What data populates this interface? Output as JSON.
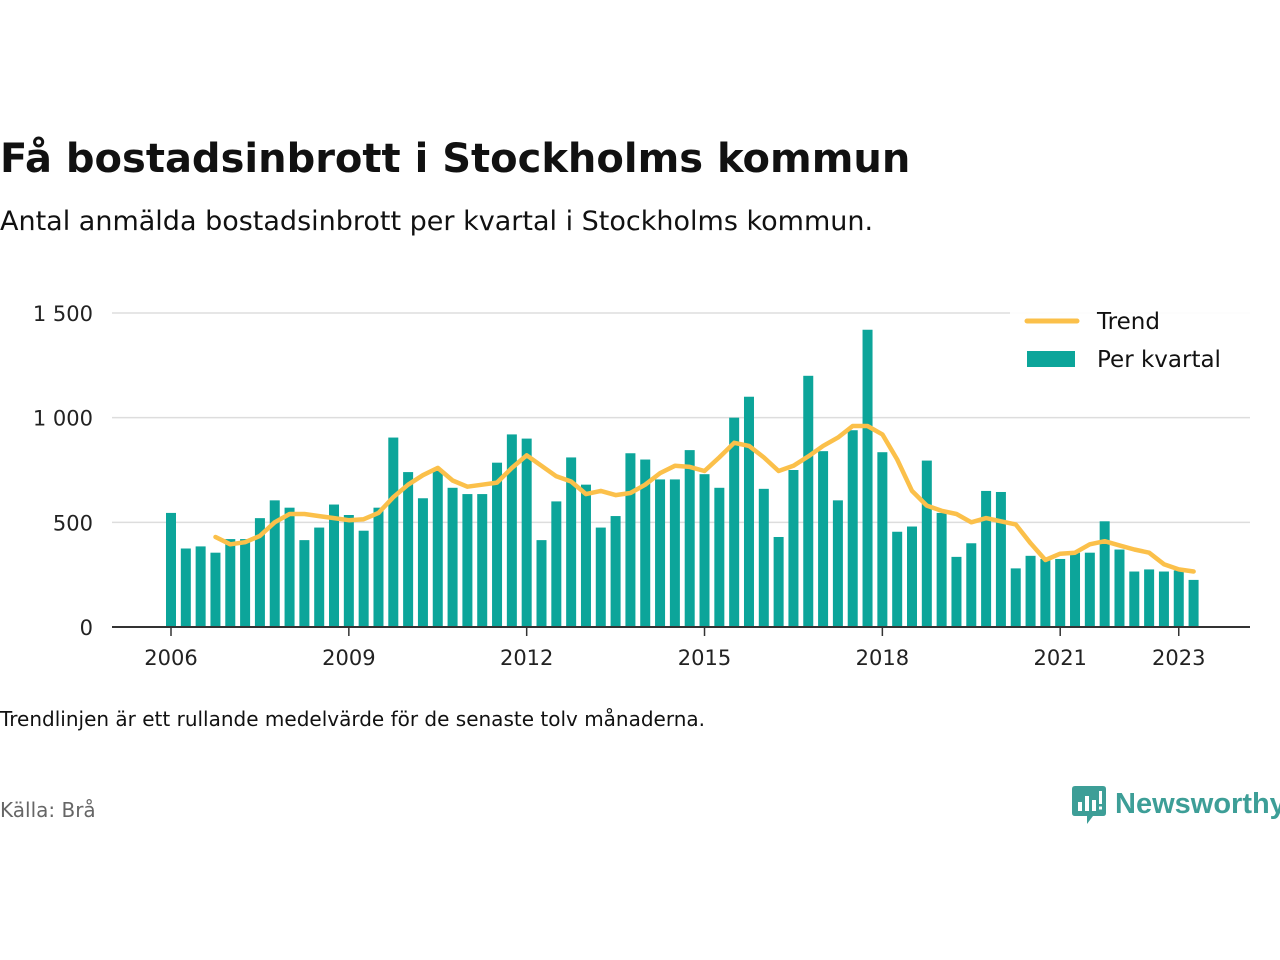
{
  "title": "Få bostadsinbrott i Stockholms kommun",
  "subtitle": "Antal anmälda bostadsinbrott per kvartal i Stockholms kommun.",
  "note": "Trendlinjen är ett rullande medelvärde för de senaste tolv månaderna.",
  "source": "Källa: Brå",
  "brand": {
    "name": "Newsworthy",
    "icon": "newsworthy-logo-icon"
  },
  "colors": {
    "bars": "#0ca59a",
    "trend": "#fbc04a",
    "grid": "#dddddd",
    "axis": "#333333",
    "brand": "#3d9e97"
  },
  "chart_data": {
    "type": "bar",
    "x_start": "2006 Q1",
    "xticks": [
      "2006",
      "2009",
      "2012",
      "2015",
      "2018",
      "2021",
      "2023"
    ],
    "yticks": [
      "0",
      "500",
      "1 000",
      "1 500"
    ],
    "ylim": [
      0,
      1500
    ],
    "grid": true,
    "legend_position": "top-right",
    "series": [
      {
        "name": "Trend",
        "type": "line",
        "values": [
          null,
          null,
          null,
          430,
          395,
          405,
          435,
          500,
          540,
          540,
          530,
          520,
          510,
          515,
          545,
          620,
          680,
          725,
          760,
          700,
          670,
          680,
          690,
          760,
          820,
          770,
          720,
          695,
          635,
          650,
          630,
          640,
          680,
          735,
          770,
          765,
          745,
          810,
          880,
          865,
          810,
          745,
          770,
          815,
          865,
          905,
          960,
          960,
          920,
          800,
          650,
          580,
          555,
          540,
          500,
          520,
          505,
          490,
          400,
          320,
          350,
          355,
          395,
          410,
          390,
          370,
          355,
          300,
          275,
          265
        ]
      },
      {
        "name": "Per kvartal",
        "type": "bar",
        "values": [
          545,
          375,
          385,
          355,
          420,
          420,
          520,
          605,
          570,
          415,
          475,
          585,
          535,
          460,
          570,
          905,
          740,
          615,
          750,
          665,
          635,
          635,
          785,
          920,
          900,
          415,
          600,
          810,
          680,
          475,
          530,
          830,
          800,
          705,
          705,
          845,
          730,
          665,
          1000,
          1100,
          660,
          430,
          750,
          1200,
          840,
          605,
          940,
          1420,
          835,
          455,
          480,
          795,
          545,
          335,
          400,
          650,
          645,
          280,
          340,
          325,
          325,
          355,
          355,
          505,
          370,
          265,
          275,
          265,
          270,
          225
        ]
      }
    ]
  }
}
